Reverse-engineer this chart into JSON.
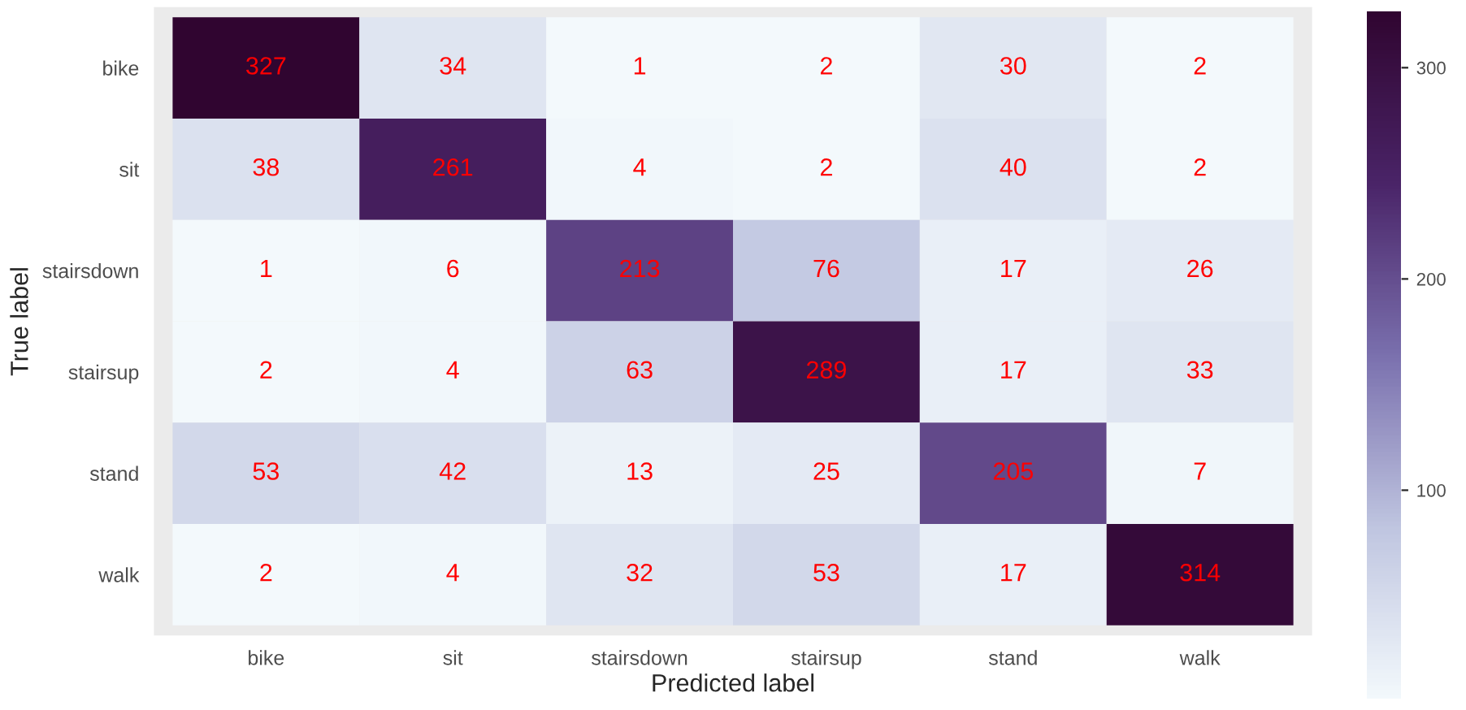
{
  "chart_data": {
    "type": "heatmap",
    "xlabel": "Predicted label",
    "ylabel": "True label",
    "categories": [
      "bike",
      "sit",
      "stairsdown",
      "stairsup",
      "stand",
      "walk"
    ],
    "y_categories": [
      "bike",
      "sit",
      "stairsdown",
      "stairsup",
      "stand",
      "walk"
    ],
    "cells": [
      [
        327,
        34,
        1,
        2,
        30,
        2
      ],
      [
        38,
        261,
        4,
        2,
        40,
        2
      ],
      [
        1,
        6,
        213,
        76,
        17,
        26
      ],
      [
        2,
        4,
        63,
        289,
        17,
        33
      ],
      [
        53,
        42,
        13,
        25,
        205,
        7
      ],
      [
        2,
        4,
        32,
        53,
        17,
        314
      ]
    ],
    "clim": [
      1,
      327
    ],
    "cticks": [
      100,
      200,
      300
    ],
    "data_labels": true
  }
}
